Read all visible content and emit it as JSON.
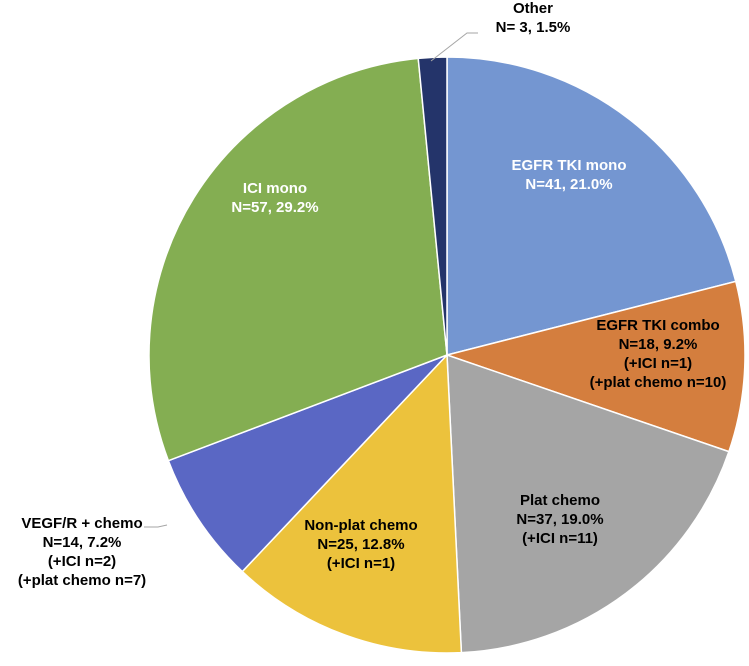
{
  "chart_data": {
    "type": "pie",
    "title": "",
    "start_angle_deg": 0,
    "direction": "clockwise",
    "slices": [
      {
        "name": "EGFR TKI mono",
        "value": 41,
        "percent": 21.0,
        "color": "#7496d1",
        "label_lines": [
          "EGFR TKI mono",
          "N=41, 21.0%"
        ],
        "label_color": "#ffffff"
      },
      {
        "name": "EGFR TKI combo",
        "value": 18,
        "percent": 9.2,
        "color": "#d47e3e",
        "label_lines": [
          "EGFR TKI combo",
          "N=18, 9.2%",
          "(+ICI n=1)",
          "(+plat chemo n=10)"
        ],
        "label_color": "#000000"
      },
      {
        "name": "Plat chemo",
        "value": 37,
        "percent": 19.0,
        "color": "#a5a5a5",
        "label_lines": [
          "Plat chemo",
          "N=37, 19.0%",
          "(+ICI n=11)"
        ],
        "label_color": "#000000"
      },
      {
        "name": "Non-plat chemo",
        "value": 25,
        "percent": 12.8,
        "color": "#ecc23c",
        "label_lines": [
          "Non-plat chemo",
          "N=25, 12.8%",
          "(+ICI n=1)"
        ],
        "label_color": "#000000"
      },
      {
        "name": "VEGF/R + chemo",
        "value": 14,
        "percent": 7.2,
        "color": "#5a67c4",
        "label_lines": [
          "VEGF/R + chemo",
          "N=14, 7.2%",
          "(+ICI n=2)",
          "(+plat chemo n=7)"
        ],
        "label_color": "#000000"
      },
      {
        "name": "ICI mono",
        "value": 57,
        "percent": 29.2,
        "color": "#84ae52",
        "label_lines": [
          "ICI mono",
          "N=57, 29.2%"
        ],
        "label_color": "#ffffff"
      },
      {
        "name": "Other",
        "value": 3,
        "percent": 1.5,
        "color": "#24346a",
        "label_lines": [
          "Other",
          "N= 3, 1.5%"
        ],
        "label_color": "#000000"
      }
    ]
  }
}
